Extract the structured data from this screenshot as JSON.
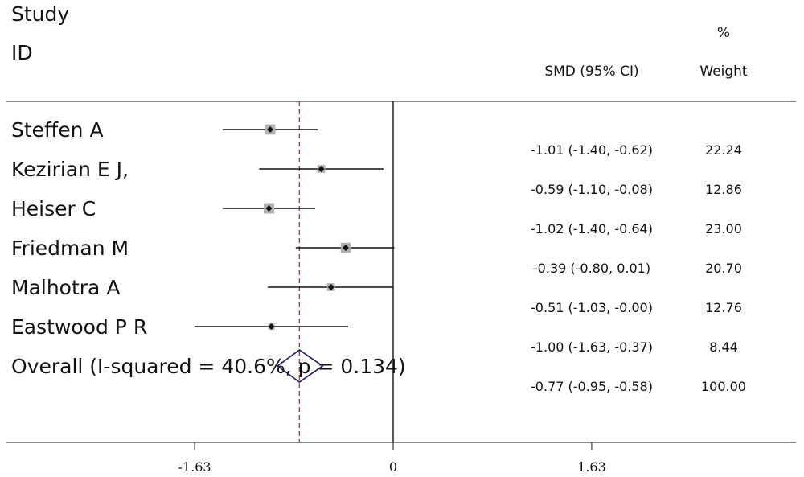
{
  "header": {
    "study": "Study",
    "id": "ID",
    "effect": "SMD (95% CI)",
    "weight_pct": "%",
    "weight": "Weight"
  },
  "chart_data": {
    "type": "forest",
    "measure": "SMD",
    "studies": [
      {
        "name": "Steffen A",
        "smd": -1.01,
        "lower": -1.4,
        "upper": -0.62,
        "ci_text": "-1.01 (-1.40, -0.62)",
        "weight": 22.24,
        "weight_text": "22.24"
      },
      {
        "name": "Kezirian E J,",
        "smd": -0.59,
        "lower": -1.1,
        "upper": -0.08,
        "ci_text": "-0.59 (-1.10, -0.08)",
        "weight": 12.86,
        "weight_text": "12.86"
      },
      {
        "name": "Heiser C",
        "smd": -1.02,
        "lower": -1.4,
        "upper": -0.64,
        "ci_text": "-1.02 (-1.40, -0.64)",
        "weight": 23.0,
        "weight_text": "23.00"
      },
      {
        "name": "Friedman M",
        "smd": -0.39,
        "lower": -0.8,
        "upper": 0.01,
        "ci_text": "-0.39 (-0.80, 0.01)",
        "weight": 20.7,
        "weight_text": "20.70"
      },
      {
        "name": "Malhotra A",
        "smd": -0.51,
        "lower": -1.03,
        "upper": -0.0,
        "ci_text": "-0.51 (-1.03, -0.00)",
        "weight": 12.76,
        "weight_text": "12.76"
      },
      {
        "name": "Eastwood P R",
        "smd": -1.0,
        "lower": -1.63,
        "upper": -0.37,
        "ci_text": "-1.00 (-1.63, -0.37)",
        "weight": 8.44,
        "weight_text": "8.44"
      }
    ],
    "overall": {
      "label": "Overall  (I-squared = 40.6%, p = 0.134)",
      "smd": -0.77,
      "lower": -0.95,
      "upper": -0.58,
      "ci_text": "-0.77 (-0.95, -0.58)",
      "weight": 100.0,
      "weight_text": "100.00"
    },
    "x_ticks": [
      -1.63,
      0,
      1.63
    ],
    "x_tick_labels": [
      "-1.63",
      "0",
      "1.63"
    ],
    "xlim": [
      -3.31,
      3.31
    ],
    "null_line": 0,
    "overall_line_color": "#a0404a",
    "diamond_color": "#1a1a5e",
    "box_color": "#b0b0b0"
  }
}
